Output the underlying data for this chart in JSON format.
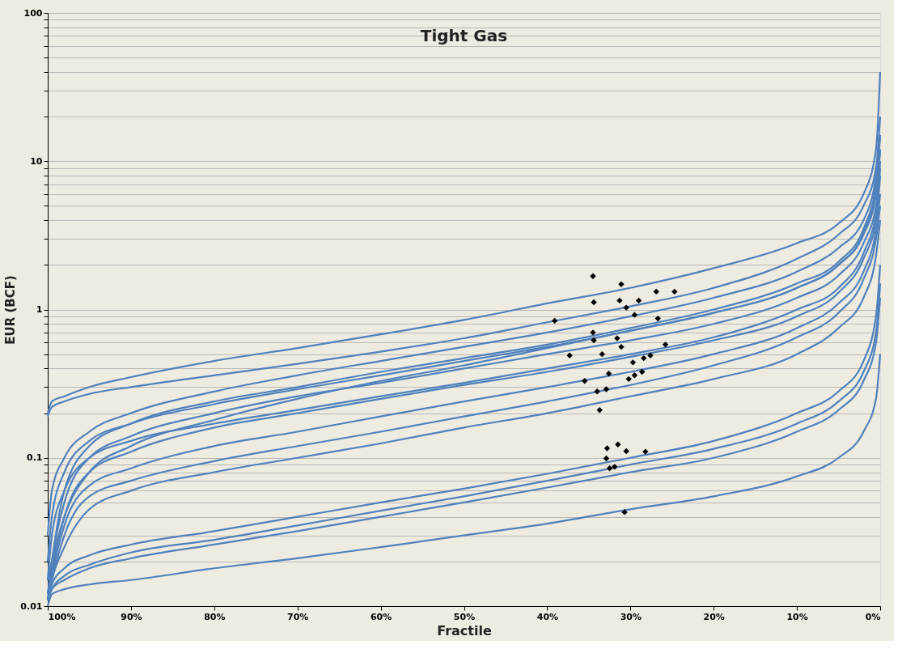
{
  "chart_data": {
    "type": "line",
    "title": "Tight Gas",
    "xlabel": "Fractile",
    "ylabel": "EUR (BCF)",
    "log": "y",
    "grid": "y",
    "marker": "none",
    "line_style": "solid",
    "x": [
      100,
      99.5,
      98,
      95,
      90,
      80,
      70,
      60,
      50,
      40,
      30,
      20,
      10,
      5,
      2,
      0.5,
      0
    ],
    "xlim": [
      100,
      0
    ],
    "xticks": [
      {
        "value": 100,
        "label": "100%"
      },
      {
        "value": 90,
        "label": "90%"
      },
      {
        "value": 80,
        "label": "80%"
      },
      {
        "value": 70,
        "label": "70%"
      },
      {
        "value": 60,
        "label": "60%"
      },
      {
        "value": 50,
        "label": "50%"
      },
      {
        "value": 40,
        "label": "40%"
      },
      {
        "value": 30,
        "label": "30%"
      },
      {
        "value": 20,
        "label": "20%"
      },
      {
        "value": 10,
        "label": "10%"
      },
      {
        "value": 0,
        "label": "0%"
      }
    ],
    "ylim": [
      0.01,
      100
    ],
    "yticks": [
      0.01,
      {
        "value": 0.02,
        "label": null
      },
      {
        "value": 0.03,
        "label": null
      },
      {
        "value": 0.04,
        "label": null
      },
      {
        "value": 0.05,
        "label": null
      },
      {
        "value": 0.06,
        "label": null
      },
      {
        "value": 0.07,
        "label": null
      },
      {
        "value": 0.08,
        "label": null
      },
      {
        "value": 0.09,
        "label": null
      },
      0.1,
      {
        "value": 0.2,
        "label": null
      },
      {
        "value": 0.3,
        "label": null
      },
      {
        "value": 0.4,
        "label": null
      },
      {
        "value": 0.5,
        "label": null
      },
      {
        "value": 0.6,
        "label": null
      },
      {
        "value": 0.7,
        "label": null
      },
      {
        "value": 0.8,
        "label": null
      },
      {
        "value": 0.9,
        "label": null
      },
      1,
      {
        "value": 2,
        "label": null
      },
      {
        "value": 3,
        "label": null
      },
      {
        "value": 4,
        "label": null
      },
      {
        "value": 5,
        "label": null
      },
      {
        "value": 6,
        "label": null
      },
      {
        "value": 7,
        "label": null
      },
      {
        "value": 8,
        "label": null
      },
      {
        "value": 9,
        "label": null
      },
      10,
      {
        "value": 20,
        "label": null
      },
      {
        "value": 30,
        "label": null
      },
      {
        "value": 40,
        "label": null
      },
      {
        "value": 50,
        "label": null
      },
      {
        "value": 60,
        "label": null
      },
      {
        "value": 70,
        "label": null
      },
      {
        "value": 80,
        "label": null
      },
      {
        "value": 90,
        "label": null
      },
      100
    ],
    "series": [
      {
        "color": "#4f81bd",
        "values": [
          0.2,
          0.24,
          0.26,
          0.3,
          0.35,
          0.45,
          0.55,
          0.68,
          0.85,
          1.1,
          1.4,
          1.9,
          2.8,
          3.8,
          6,
          12,
          40
        ]
      },
      {
        "color": "#4f81bd",
        "values": [
          0.19,
          0.22,
          0.24,
          0.27,
          0.3,
          0.36,
          0.43,
          0.52,
          0.64,
          0.82,
          1.05,
          1.4,
          2.2,
          3.2,
          5,
          9,
          20
        ]
      },
      {
        "color": "#4f81bd",
        "values": [
          0.03,
          0.06,
          0.1,
          0.15,
          0.2,
          0.28,
          0.36,
          0.45,
          0.56,
          0.7,
          0.9,
          1.2,
          1.8,
          2.6,
          4,
          8,
          15
        ]
      },
      {
        "color": "#4f81bd",
        "values": [
          0.012,
          0.02,
          0.06,
          0.12,
          0.17,
          0.24,
          0.3,
          0.38,
          0.47,
          0.58,
          0.75,
          1.0,
          1.5,
          2.1,
          3.5,
          7,
          15
        ]
      },
      {
        "color": "#4f81bd",
        "values": [
          0.02,
          0.04,
          0.08,
          0.13,
          0.17,
          0.23,
          0.29,
          0.36,
          0.45,
          0.56,
          0.72,
          0.95,
          1.4,
          2,
          3.3,
          6.5,
          12
        ]
      },
      {
        "color": "#4f81bd",
        "values": [
          0.015,
          0.02,
          0.04,
          0.08,
          0.12,
          0.18,
          0.25,
          0.33,
          0.42,
          0.55,
          0.72,
          0.95,
          1.4,
          2,
          3.2,
          6,
          12
        ]
      },
      {
        "color": "#4f81bd",
        "values": [
          0.012,
          0.02,
          0.05,
          0.1,
          0.14,
          0.2,
          0.26,
          0.32,
          0.4,
          0.5,
          0.62,
          0.8,
          1.2,
          1.7,
          2.8,
          5,
          10
        ]
      },
      {
        "color": "#4f81bd",
        "values": [
          0.015,
          0.03,
          0.06,
          0.1,
          0.13,
          0.17,
          0.21,
          0.26,
          0.32,
          0.4,
          0.5,
          0.65,
          1,
          1.4,
          2.4,
          4.5,
          9
        ]
      },
      {
        "color": "#4f81bd",
        "values": [
          0.011,
          0.017,
          0.04,
          0.08,
          0.11,
          0.16,
          0.2,
          0.25,
          0.31,
          0.38,
          0.48,
          0.62,
          0.9,
          1.3,
          2.2,
          4,
          8
        ]
      },
      {
        "color": "#4f81bd",
        "values": [
          0.011,
          0.016,
          0.035,
          0.065,
          0.085,
          0.12,
          0.15,
          0.19,
          0.24,
          0.3,
          0.38,
          0.5,
          0.75,
          1.1,
          1.8,
          3.5,
          6
        ]
      },
      {
        "color": "#4f81bd",
        "values": [
          0.011,
          0.015,
          0.03,
          0.055,
          0.07,
          0.095,
          0.12,
          0.15,
          0.19,
          0.24,
          0.31,
          0.42,
          0.65,
          0.95,
          1.6,
          3,
          5
        ]
      },
      {
        "color": "#4f81bd",
        "values": [
          0.011,
          0.015,
          0.025,
          0.045,
          0.06,
          0.08,
          0.1,
          0.125,
          0.16,
          0.2,
          0.26,
          0.34,
          0.5,
          0.75,
          1.2,
          2.3,
          4
        ]
      },
      {
        "color": "#4f81bd",
        "values": [
          0.011,
          0.014,
          0.018,
          0.022,
          0.026,
          0.032,
          0.04,
          0.05,
          0.062,
          0.078,
          0.1,
          0.13,
          0.2,
          0.28,
          0.45,
          0.9,
          2
        ]
      },
      {
        "color": "#4f81bd",
        "values": [
          0.011,
          0.013,
          0.016,
          0.019,
          0.023,
          0.028,
          0.035,
          0.044,
          0.055,
          0.07,
          0.09,
          0.115,
          0.17,
          0.24,
          0.38,
          0.7,
          1.5
        ]
      },
      {
        "color": "#4f81bd",
        "values": [
          0.011,
          0.013,
          0.015,
          0.018,
          0.021,
          0.026,
          0.032,
          0.04,
          0.05,
          0.063,
          0.08,
          0.1,
          0.15,
          0.21,
          0.33,
          0.6,
          1.2
        ]
      },
      {
        "color": "#4f81bd",
        "values": [
          0.01,
          0.012,
          0.013,
          0.014,
          0.015,
          0.018,
          0.021,
          0.025,
          0.03,
          0.036,
          0.045,
          0.055,
          0.075,
          0.1,
          0.15,
          0.25,
          0.5
        ]
      },
      {
        "type": "scatter",
        "marker": "diamond",
        "color": "#000000",
        "x": [
          39.1,
          34.5,
          34.4,
          34.5,
          34.4,
          37.3,
          33.4,
          31.1,
          31.3,
          30.5,
          29.0,
          29.5,
          26.9,
          24.7,
          26.7,
          31.6,
          31.1,
          25.8,
          29.7,
          28.4,
          27.6,
          32.6,
          35.5,
          34.0,
          32.9,
          30.2,
          29.5,
          28.6,
          33.7,
          31.5,
          32.8,
          30.5,
          28.2,
          32.9,
          32.5,
          31.9,
          30.7
        ],
        "values": [
          0.84,
          1.68,
          1.12,
          0.7,
          0.62,
          0.49,
          0.5,
          1.48,
          1.15,
          1.03,
          1.15,
          0.92,
          1.32,
          1.32,
          0.87,
          0.64,
          0.56,
          0.58,
          0.44,
          0.47,
          0.49,
          0.37,
          0.33,
          0.28,
          0.29,
          0.34,
          0.36,
          0.38,
          0.21,
          0.123,
          0.116,
          0.111,
          0.11,
          0.099,
          0.085,
          0.087,
          0.043
        ]
      }
    ]
  }
}
